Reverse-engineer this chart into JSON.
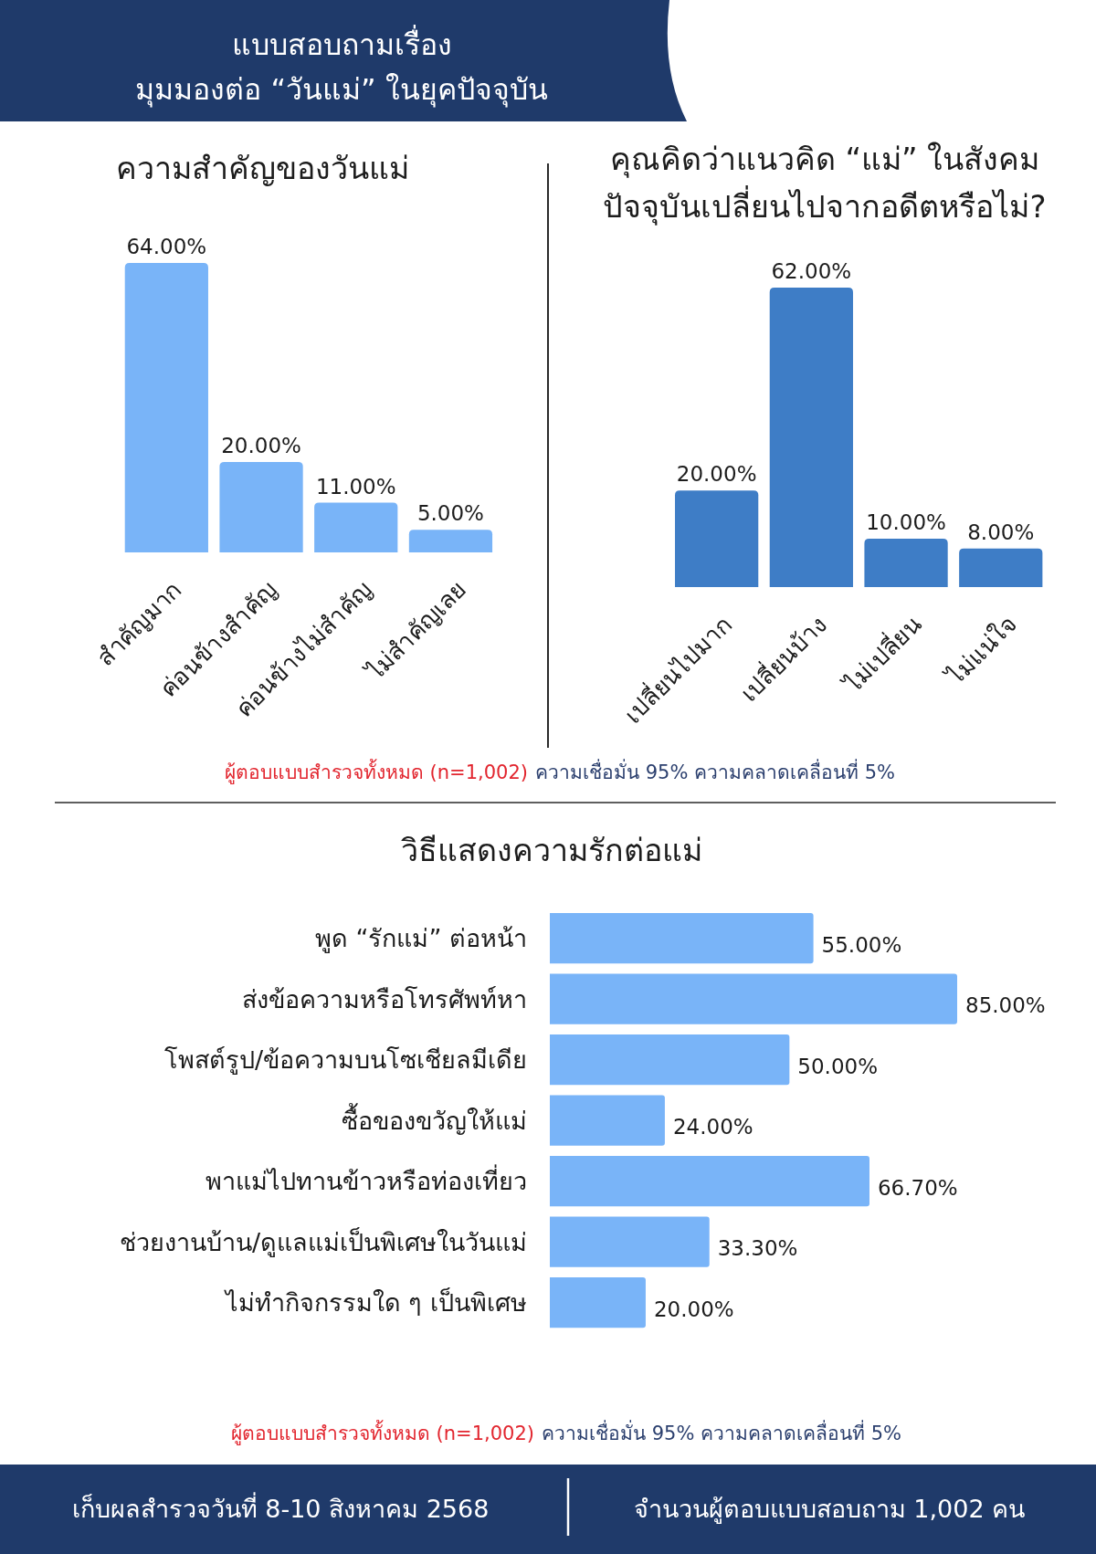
{
  "chart_data": [
    {
      "type": "other",
      "title": "แบบสอบถามเรื่อง\nมุมมองต่อ “วันแม่” ในยุคปัจจุบัน"
    },
    {
      "type": "bar",
      "title": "ความสำคัญของวันแม่",
      "categories": [
        "สำคัญมาก",
        "ค่อนข้างสำคัญ",
        "ค่อนข้างไม่สำคัญ",
        "ไม่สำคัญเลย"
      ],
      "values": [
        64,
        20,
        11,
        5
      ],
      "value_labels": [
        "64.00%",
        "20.00%",
        "11.00%",
        "5.00%"
      ],
      "color": "#79b4f8",
      "annotations": [
        "ผู้ตอบแบบสำรวจทั้งหมด (n=1,002)",
        "ความเชื่อมั่น 95% ความคลาดเคลื่อนที่ 5%"
      ]
    },
    {
      "type": "bar",
      "title": "คุณคิดว่าแนวคิด “แม่” ในสังคม\nปัจจุบันเปลี่ยนไปจากอดีตหรือไม่?",
      "categories": [
        "เปลี่ยนไปมาก",
        "เปลี่ยนบ้าง",
        "ไม่เปลี่ยน",
        "ไม่แน่ใจ"
      ],
      "values": [
        20,
        62,
        10,
        8
      ],
      "value_labels": [
        "20.00%",
        "62.00%",
        "10.00%",
        "8.00%"
      ],
      "color": "#3e7dc6"
    },
    {
      "type": "bar",
      "orientation": "horizontal",
      "title": "วิธีแสดงความรักต่อแม่",
      "categories": [
        "พูด “รักแม่” ต่อหน้า",
        "ส่งข้อความหรือโทรศัพท์หา",
        "โพสต์รูป/ข้อความบนโซเชียลมีเดีย",
        "ซื้อของขวัญให้แม่",
        "พาแม่ไปทานข้าวหรือท่องเที่ยว",
        "ช่วยงานบ้าน/ดูแลแม่เป็นพิเศษในวันแม่",
        "ไม่ทำกิจกรรมใด ๆ เป็นพิเศษ"
      ],
      "values": [
        55,
        85,
        50,
        24,
        66.7,
        33.3,
        20
      ],
      "value_labels": [
        "55.00%",
        "85.00%",
        "50.00%",
        "24.00%",
        "66.70%",
        "33.30%",
        "20.00%"
      ],
      "color": "#79b4f8",
      "annotations": [
        "ผู้ตอบแบบสำรวจทั้งหมด (n=1,002)",
        "ความเชื่อมั่น 95% ความคลาดเคลื่อนที่ 5%"
      ]
    },
    {
      "type": "other",
      "annotations": [
        "เก็บผลสำรวจวันที่ 8-10 สิงหาคม 2568",
        "จำนวนผู้ตอบแบบสอบถาม 1,002 คน"
      ]
    }
  ]
}
